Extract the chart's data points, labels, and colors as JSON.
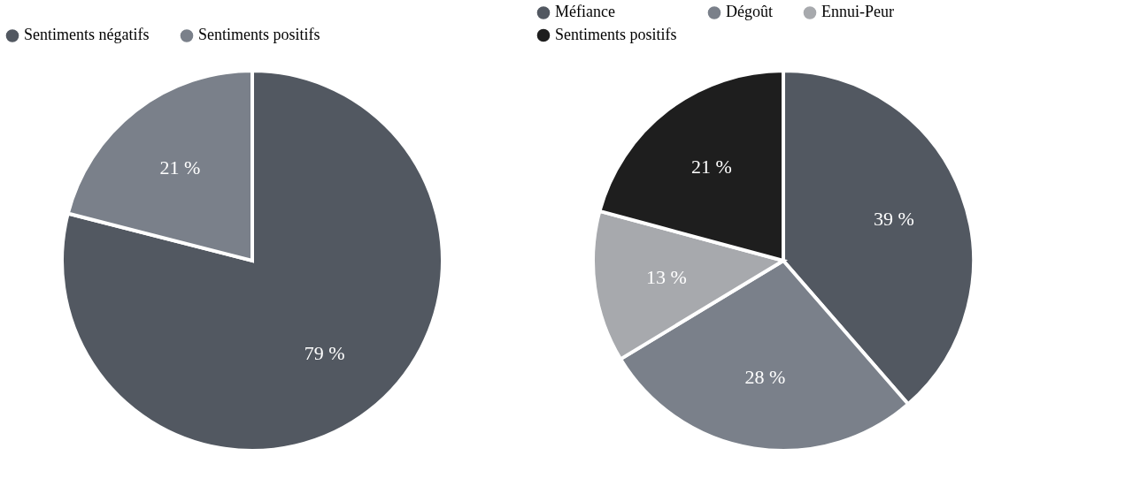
{
  "chart_data": [
    {
      "type": "pie",
      "categories": [
        "Sentiments négatifs",
        "Sentiments positifs"
      ],
      "values": [
        79,
        21
      ],
      "colors": [
        "#525861",
        "#7a808a"
      ],
      "value_labels": [
        "79 %",
        "21 %"
      ],
      "legend": "top left"
    },
    {
      "type": "pie",
      "categories": [
        "Méfiance",
        "Dégoût",
        "Ennui-Peur",
        "Sentiments positifs"
      ],
      "values": [
        39,
        28,
        13,
        21
      ],
      "colors": [
        "#525861",
        "#7a808a",
        "#a7a9ad",
        "#1e1e1e"
      ],
      "value_labels": [
        "39 %",
        "28 %",
        "13 %",
        "21 %"
      ],
      "legend": "top"
    }
  ]
}
